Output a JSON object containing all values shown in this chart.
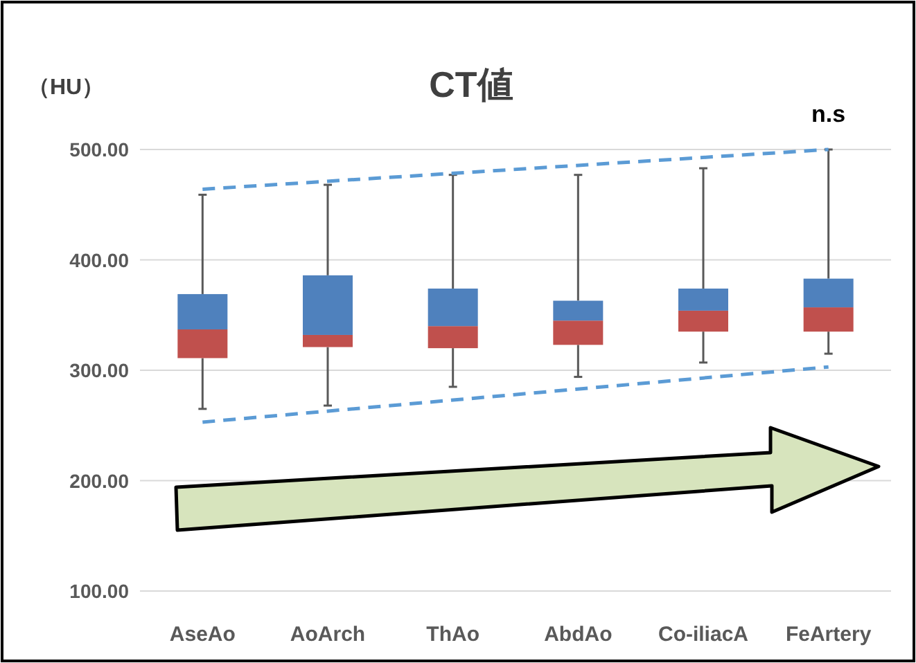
{
  "chart_data": {
    "type": "box",
    "title": "CT値",
    "ylabel": "（HU）",
    "annotations": [
      "n.s"
    ],
    "categories": [
      "AseAo",
      "AoArch",
      "ThAo",
      "AbdAo",
      "Co-iliacA",
      "FeArtery"
    ],
    "series": [
      {
        "color": "#4f81bd",
        "colors": [
          "#c0504d",
          "#c0504d",
          "#c0504d",
          "#c0504d",
          "#c0504d",
          "#c0504d"
        ],
        "boxes": [
          {
            "low": 265,
            "q1": 311,
            "median": 337,
            "q3": 369,
            "high": 459
          },
          {
            "low": 268,
            "q1": 321,
            "median": 332,
            "q3": 386,
            "high": 468
          },
          {
            "low": 285,
            "q1": 320,
            "median": 340,
            "q3": 374,
            "high": 477
          },
          {
            "low": 294,
            "q1": 323,
            "median": 345,
            "q3": 363,
            "high": 477
          },
          {
            "low": 307,
            "q1": 335,
            "median": 354,
            "q3": 374,
            "high": 483
          },
          {
            "low": 315,
            "q1": 335,
            "median": 357,
            "q3": 383,
            "high": 500
          }
        ]
      },
      {
        "type": "line",
        "x": [
          "AseAo",
          "FeArtery"
        ],
        "values": [
          464,
          500
        ],
        "color": "#5b9bd5",
        "line_style": "dashed",
        "marker": "none"
      },
      {
        "type": "line",
        "x": [
          "AseAo",
          "FeArtery"
        ],
        "values": [
          253,
          303
        ],
        "color": "#5b9bd5",
        "line_style": "dashed",
        "marker": "none"
      }
    ],
    "ylim": [
      100,
      500
    ],
    "yticks": [
      {
        "value": 100,
        "label": "100.00"
      },
      {
        "value": 200,
        "label": "200.00"
      },
      {
        "value": 300,
        "label": "300.00"
      },
      {
        "value": 400,
        "label": "400.00"
      },
      {
        "value": 500,
        "label": "500.00"
      }
    ],
    "grid": "y"
  }
}
